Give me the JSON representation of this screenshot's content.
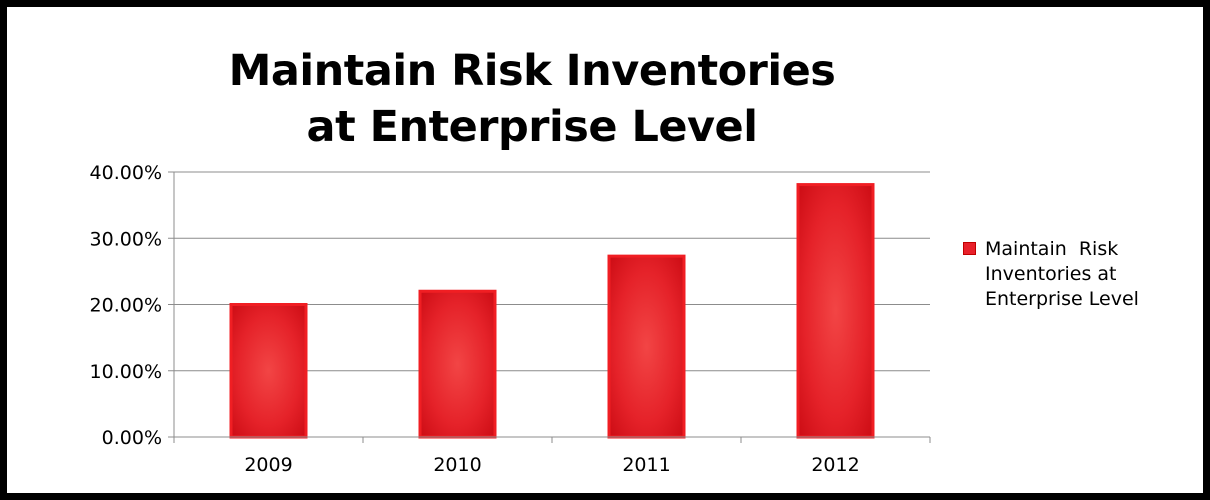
{
  "chart_data": {
    "type": "bar",
    "title": "Maintain Risk Inventories at Enterprise Level",
    "categories": [
      "2009",
      "2010",
      "2011",
      "2012"
    ],
    "series": [
      {
        "name": "Maintain  Risk Inventories at Enterprise Level",
        "values": [
          0.2,
          0.22,
          0.273,
          0.381
        ]
      }
    ],
    "ylim": [
      0,
      0.4
    ],
    "yticks": [
      0,
      0.1,
      0.2,
      0.3,
      0.4
    ],
    "ytick_labels": [
      "0.00%",
      "10.00%",
      "20.00%",
      "30.00%",
      "40.00%"
    ],
    "xlabel": "",
    "ylabel": "",
    "grid": true,
    "legend_position": "right",
    "bar_color": "#e8202a"
  }
}
